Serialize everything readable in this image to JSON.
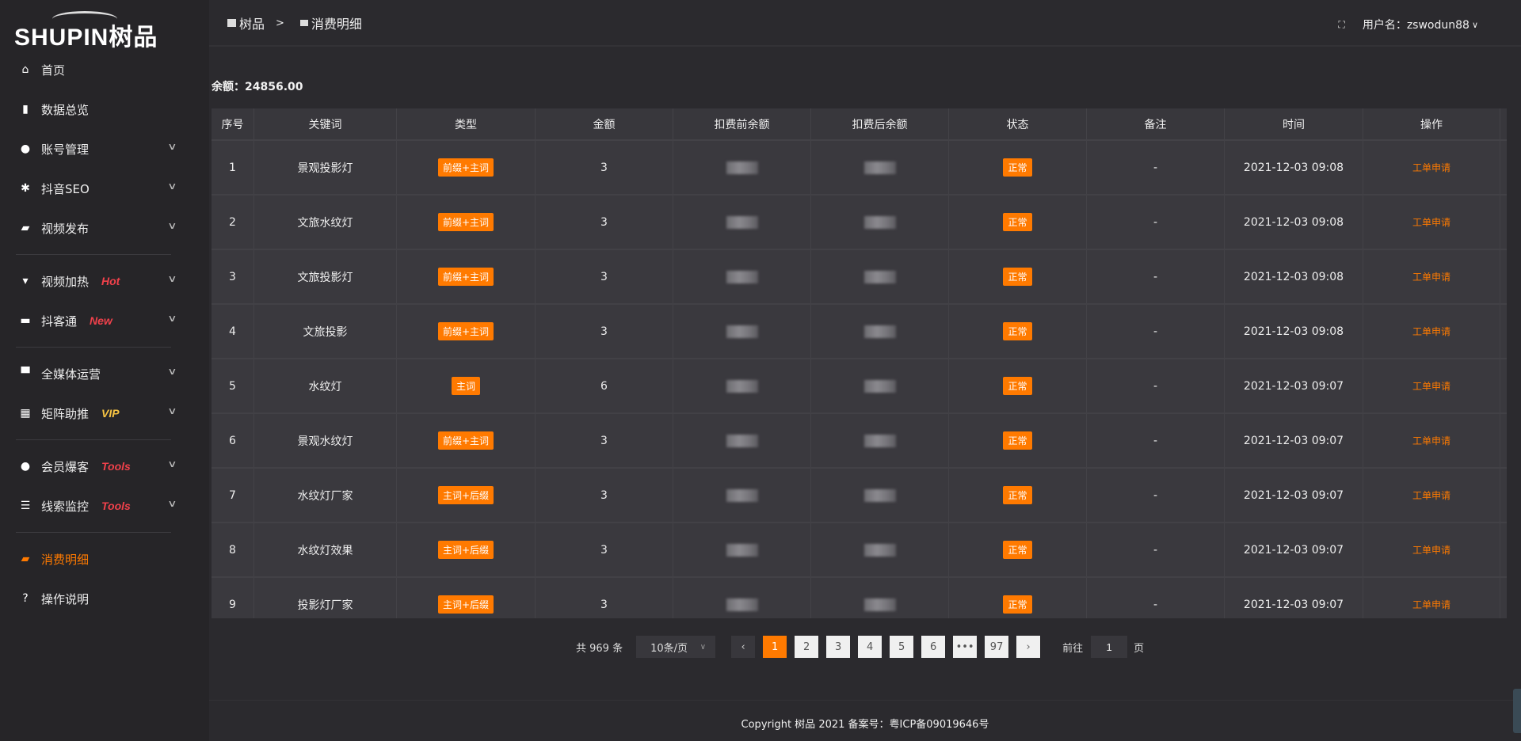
{
  "logo": {
    "text": "SHUPIN树品"
  },
  "sidebar": {
    "items": [
      {
        "label": "首页",
        "icon": "home-icon",
        "glyph": "⌂"
      },
      {
        "label": "数据总览",
        "icon": "bar-chart-icon",
        "glyph": "▮"
      },
      {
        "label": "账号管理",
        "icon": "user-icon",
        "glyph": "●",
        "chevron": true
      },
      {
        "label": "抖音SEO",
        "icon": "gear-icon",
        "glyph": "✱",
        "chevron": true
      },
      {
        "label": "视频发布",
        "icon": "video-icon",
        "glyph": "▰",
        "chevron": true
      },
      {
        "label": "视频加热",
        "icon": "billboard-icon",
        "glyph": "▾",
        "chevron": true,
        "tag": "Hot",
        "tag_color": "#f0414b"
      },
      {
        "label": "抖客通",
        "icon": "chat-icon",
        "glyph": "▬",
        "chevron": true,
        "tag": "New",
        "tag_color": "#f0414b"
      },
      {
        "label": "全媒体运营",
        "icon": "monitor-icon",
        "glyph": "▀",
        "chevron": true
      },
      {
        "label": "矩阵助推",
        "icon": "grid-icon",
        "glyph": "▦",
        "chevron": true,
        "tag": "VIP",
        "tag_color": "#f6c343"
      },
      {
        "label": "会员爆客",
        "icon": "user-icon",
        "glyph": "●",
        "chevron": true,
        "tag": "Tools",
        "tag_color": "#f0414b"
      },
      {
        "label": "线索监控",
        "icon": "sliders-icon",
        "glyph": "☰",
        "chevron": true,
        "tag": "Tools",
        "tag_color": "#f0414b"
      },
      {
        "label": "消费明细",
        "icon": "wallet-icon",
        "glyph": "▰",
        "active": true
      },
      {
        "label": "操作说明",
        "icon": "help-icon",
        "glyph": "?"
      }
    ]
  },
  "header": {
    "breadcrumb": [
      "树品",
      "消费明细"
    ],
    "separator": ">",
    "user_label": "用户名：zswodun88"
  },
  "balance": "余额：24856.00",
  "table": {
    "columns": [
      "序号",
      "关键词",
      "类型",
      "金额",
      "扣费前余额",
      "扣费后余额",
      "状态",
      "备注",
      "时间",
      "操作"
    ],
    "rows": [
      {
        "no": "1",
        "keyword": "景观投影灯",
        "type": "前缀+主词",
        "amount": "3",
        "status": "正常",
        "note": "-",
        "time": "2021-12-03 09:08",
        "action": "工单申请"
      },
      {
        "no": "2",
        "keyword": "文旅水纹灯",
        "type": "前缀+主词",
        "amount": "3",
        "status": "正常",
        "note": "-",
        "time": "2021-12-03 09:08",
        "action": "工单申请"
      },
      {
        "no": "3",
        "keyword": "文旅投影灯",
        "type": "前缀+主词",
        "amount": "3",
        "status": "正常",
        "note": "-",
        "time": "2021-12-03 09:08",
        "action": "工单申请"
      },
      {
        "no": "4",
        "keyword": "文旅投影",
        "type": "前缀+主词",
        "amount": "3",
        "status": "正常",
        "note": "-",
        "time": "2021-12-03 09:08",
        "action": "工单申请"
      },
      {
        "no": "5",
        "keyword": "水纹灯",
        "type": "主词",
        "amount": "6",
        "status": "正常",
        "note": "-",
        "time": "2021-12-03 09:07",
        "action": "工单申请"
      },
      {
        "no": "6",
        "keyword": "景观水纹灯",
        "type": "前缀+主词",
        "amount": "3",
        "status": "正常",
        "note": "-",
        "time": "2021-12-03 09:07",
        "action": "工单申请"
      },
      {
        "no": "7",
        "keyword": "水纹灯厂家",
        "type": "主词+后缀",
        "amount": "3",
        "status": "正常",
        "note": "-",
        "time": "2021-12-03 09:07",
        "action": "工单申请"
      },
      {
        "no": "8",
        "keyword": "水纹灯效果",
        "type": "主词+后缀",
        "amount": "3",
        "status": "正常",
        "note": "-",
        "time": "2021-12-03 09:07",
        "action": "工单申请"
      },
      {
        "no": "9",
        "keyword": "投影灯厂家",
        "type": "主词+后缀",
        "amount": "3",
        "status": "正常",
        "note": "-",
        "time": "2021-12-03 09:07",
        "action": "工单申请"
      }
    ]
  },
  "pagination": {
    "total": "共 969 条",
    "page_size": "10条/页",
    "pages": [
      "1",
      "2",
      "3",
      "4",
      "5",
      "6",
      "•••",
      "97"
    ],
    "current": "1",
    "goto_label": "前往",
    "goto_value": "1",
    "page_suffix": "页"
  },
  "footer": {
    "copyright": "Copyright 树品 2021 备案号：粤ICP备09019646号"
  },
  "colors": {
    "accent": "#ff7a00",
    "background": "#2b2a2e",
    "sidebar": "#262528",
    "table": "#3a393e"
  }
}
